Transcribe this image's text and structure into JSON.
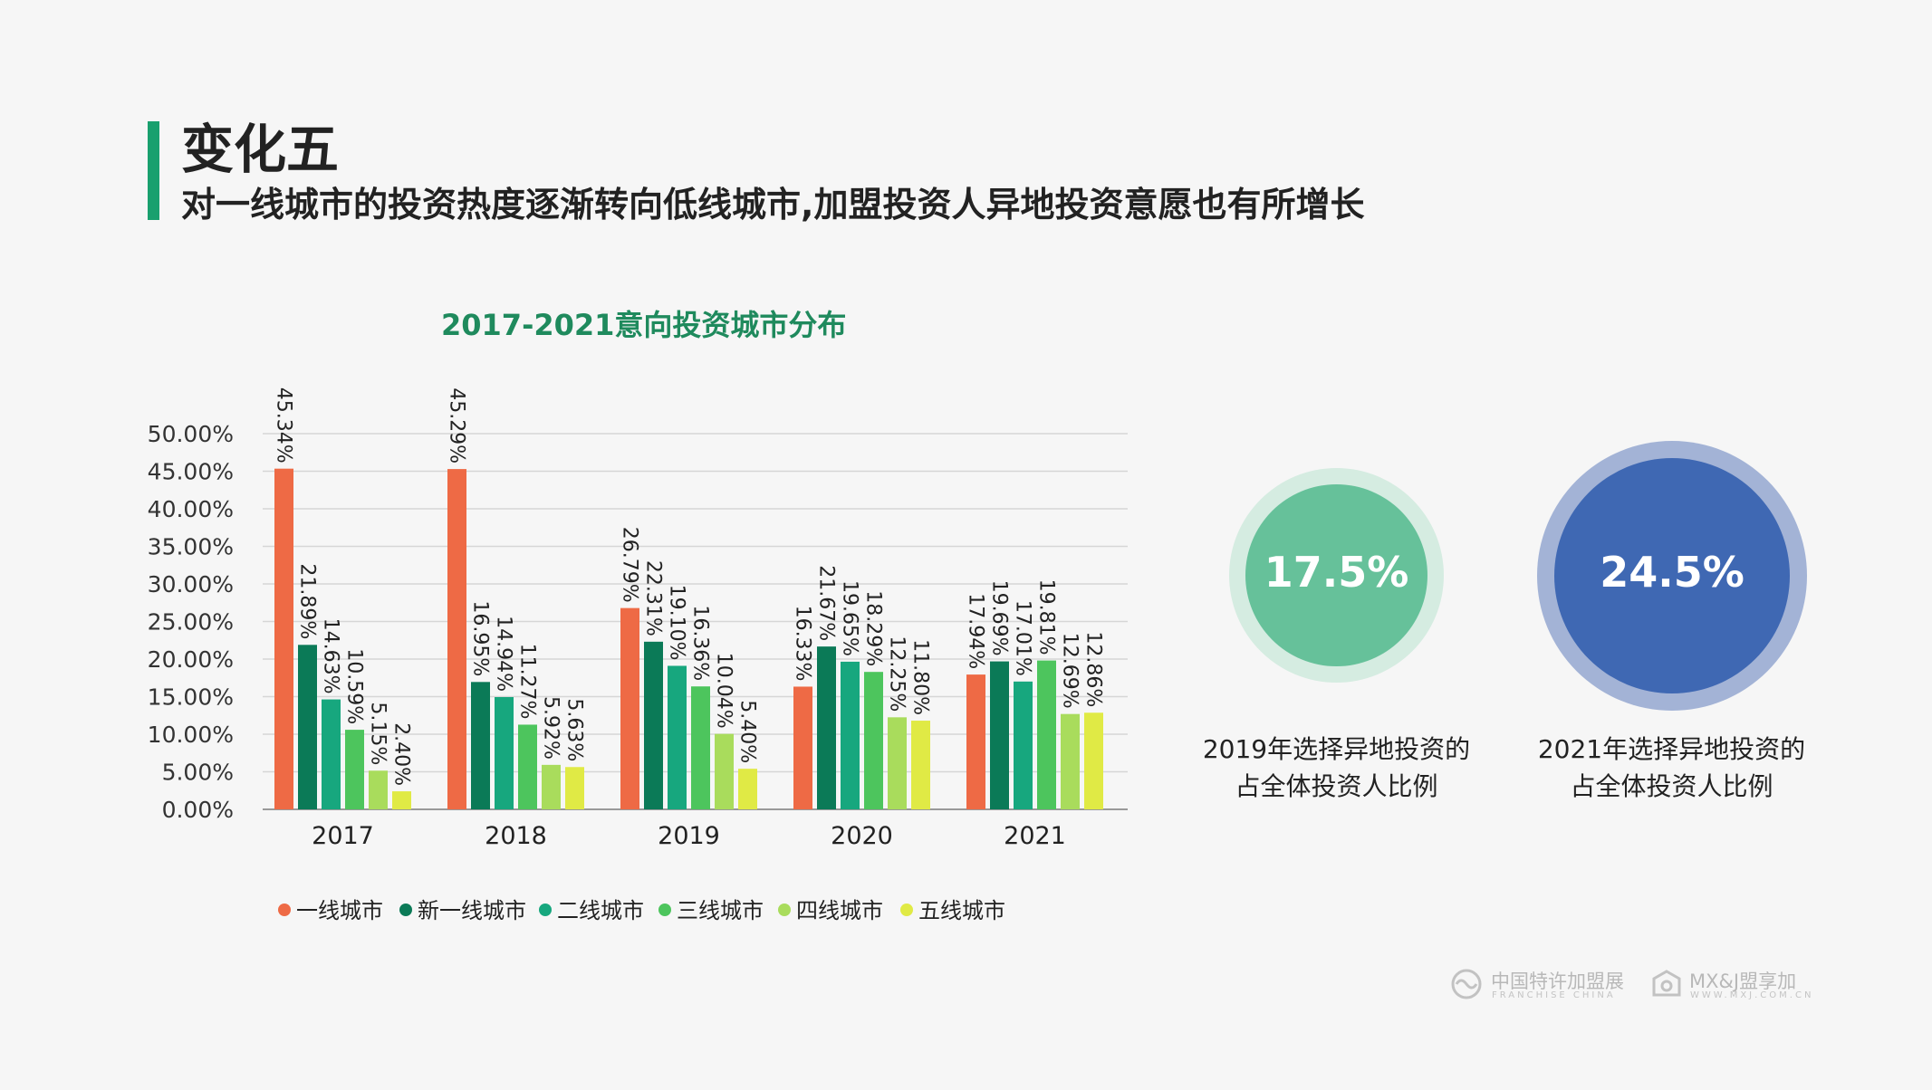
{
  "heading": "变化五",
  "subheading": "对一线城市的投资热度逐渐转向低线城市,加盟投资人异地投资意愿也有所增长",
  "chart_data": {
    "type": "bar",
    "title": "2017-2021意向投资城市分布",
    "categories": [
      "2017",
      "2018",
      "2019",
      "2020",
      "2021"
    ],
    "ylim": [
      0,
      50
    ],
    "yticks": [
      "0.00%",
      "5.00%",
      "10.00%",
      "15.00%",
      "20.00%",
      "25.00%",
      "30.00%",
      "35.00%",
      "40.00%",
      "45.00%",
      "50.00%"
    ],
    "grid": true,
    "legend_position": "bottom",
    "series": [
      {
        "name": "一线城市",
        "color": "#ee6a45",
        "values": [
          45.34,
          45.29,
          26.79,
          16.33,
          17.94
        ],
        "labels": [
          "45.34%",
          "45.29%",
          "26.79%",
          "16.33%",
          "17.94%"
        ]
      },
      {
        "name": "新一线城市",
        "color": "#0b7a57",
        "values": [
          21.89,
          16.95,
          22.31,
          21.67,
          19.69
        ],
        "labels": [
          "21.89%",
          "16.95%",
          "22.31%",
          "21.67%",
          "19.69%"
        ]
      },
      {
        "name": "二线城市",
        "color": "#17a77e",
        "values": [
          14.63,
          14.94,
          19.1,
          19.65,
          17.01
        ],
        "labels": [
          "14.63%",
          "14.94%",
          "19.10%",
          "19.65%",
          "17.01%"
        ]
      },
      {
        "name": "三线城市",
        "color": "#4dc55d",
        "values": [
          10.59,
          11.27,
          16.36,
          18.29,
          19.81
        ],
        "labels": [
          "10.59%",
          "11.27%",
          "16.36%",
          "18.29%",
          "19.81%"
        ]
      },
      {
        "name": "四线城市",
        "color": "#a9dc5c",
        "values": [
          5.15,
          5.92,
          10.04,
          12.25,
          12.69
        ],
        "labels": [
          "5.15%",
          "5.92%",
          "10.04%",
          "12.25%",
          "12.69%"
        ]
      },
      {
        "name": "五线城市",
        "color": "#e0ea45",
        "values": [
          2.4,
          5.63,
          5.4,
          11.8,
          12.86
        ],
        "labels": [
          "2.40%",
          "5.63%",
          "5.40%",
          "11.80%",
          "12.86%"
        ]
      }
    ]
  },
  "stats": [
    {
      "value": "17.5%",
      "caption_line1": "2019年选择异地投资的",
      "caption_line2": "占全体投资人比例",
      "inner_color": "#66c19a",
      "outer_color": "#d5ece1"
    },
    {
      "value": "24.5%",
      "caption_line1": "2021年选择异地投资的",
      "caption_line2": "占全体投资人比例",
      "inner_color": "#3f68b3",
      "outer_color": "#a3b3d6"
    }
  ],
  "logos": {
    "logo1_name": "中国特许加盟展",
    "logo1_sub": "FRANCHISE CHINA",
    "logo2_name": "MX&J盟享加",
    "logo2_sub": "WWW.MXJ.COM.CN"
  }
}
